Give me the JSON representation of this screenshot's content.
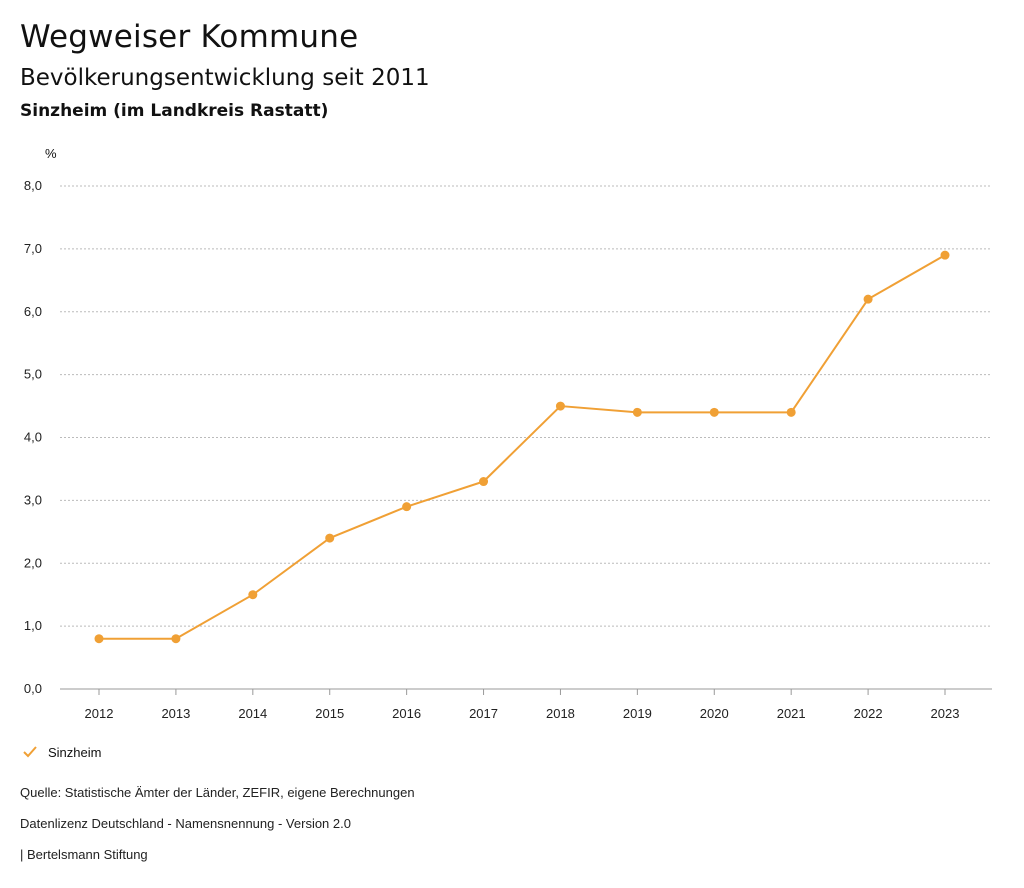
{
  "header": {
    "title": "Wegweiser Kommune",
    "subtitle": "Bevölkerungsentwicklung seit 2011",
    "region": "Sinzheim (im Landkreis Rastatt)"
  },
  "footer": {
    "source": "Quelle: Statistische Ämter der Länder, ZEFIR, eigene Berechnungen",
    "license": "Datenlizenz Deutschland - Namensnennung - Version 2.0",
    "organization": "| Bertelsmann Stiftung"
  },
  "colors": {
    "series": "#f0a035",
    "grid": "#bbbbbb"
  },
  "chart_data": {
    "type": "line",
    "title": "Bevölkerungsentwicklung seit 2011",
    "ylabel": "%",
    "xlabel": "",
    "ylim": [
      0,
      8
    ],
    "yticks": [
      "0,0",
      "1,0",
      "2,0",
      "3,0",
      "4,0",
      "5,0",
      "6,0",
      "7,0",
      "8,0"
    ],
    "categories": [
      "2012",
      "2013",
      "2014",
      "2015",
      "2016",
      "2017",
      "2018",
      "2019",
      "2020",
      "2021",
      "2022",
      "2023"
    ],
    "series": [
      {
        "name": "Sinzheim",
        "values": [
          0.8,
          0.8,
          1.5,
          2.4,
          2.9,
          3.3,
          4.5,
          4.4,
          4.4,
          4.4,
          6.2,
          6.9
        ]
      }
    ],
    "grid": true,
    "legend": "bottom-left"
  }
}
